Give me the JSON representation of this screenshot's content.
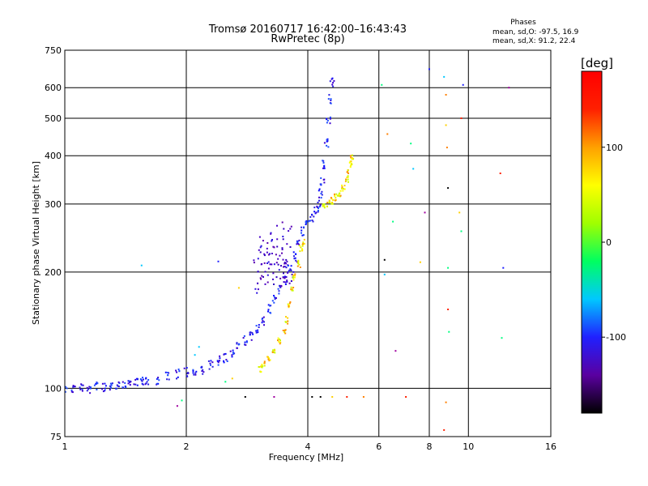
{
  "chart_data": {
    "type": "scatter",
    "title": "Tromsø 20160717 16:42:00–16:43:43",
    "subtitle": "RwPretec (8p)",
    "xlabel": "Frequency [MHz]",
    "ylabel": "Stationary phase Virtual Height [km]",
    "x_scale": "log2",
    "y_scale": "log",
    "xlim": [
      1,
      16
    ],
    "ylim": [
      75,
      750
    ],
    "x_ticks": [
      1,
      2,
      4,
      6,
      8,
      10,
      16
    ],
    "x_tick_labels": [
      "1",
      "2",
      "4",
      "6",
      "8",
      "10",
      "16"
    ],
    "y_ticks": [
      75,
      100,
      200,
      300,
      400,
      500,
      600,
      750
    ],
    "y_tick_labels": [
      "75",
      "100",
      "200",
      "300",
      "400",
      "500",
      "600",
      "750"
    ],
    "grid": true,
    "phase_stats": {
      "heading": "Phases",
      "o_line": "mean, sd,O: -97.5, 16.9",
      "x_line": "mean, sd,X:  91.2, 22.4"
    },
    "colorbar": {
      "label": "[deg]",
      "range": [
        -180,
        180
      ],
      "ticks": [
        100,
        0,
        -100
      ],
      "tick_labels": [
        "100",
        "0",
        "-100"
      ],
      "colors": [
        "#000000",
        "#5a00a0",
        "#2020ff",
        "#00c8ff",
        "#00ff60",
        "#a0ff00",
        "#ffff00",
        "#ffa000",
        "#ff2000",
        "#ff0000"
      ]
    },
    "series": [
      {
        "points": [
          [
            1.0,
            99
          ],
          [
            1.05,
            99
          ],
          [
            1.1,
            100
          ],
          [
            1.15,
            100
          ],
          [
            1.2,
            101
          ],
          [
            1.25,
            101
          ],
          [
            1.3,
            102
          ],
          [
            1.35,
            102
          ],
          [
            1.4,
            102
          ],
          [
            1.45,
            103
          ],
          [
            1.5,
            103
          ],
          [
            1.55,
            104
          ],
          [
            1.6,
            104
          ],
          [
            1.7,
            105
          ],
          [
            1.8,
            107
          ],
          [
            1.9,
            109
          ],
          [
            2.0,
            110
          ],
          [
            2.1,
            111
          ],
          [
            2.2,
            112
          ],
          [
            2.3,
            115
          ],
          [
            2.4,
            118
          ],
          [
            2.5,
            120
          ],
          [
            2.6,
            124
          ],
          [
            2.7,
            128
          ],
          [
            2.8,
            133
          ],
          [
            2.9,
            137
          ],
          [
            3.0,
            142
          ],
          [
            3.1,
            150
          ],
          [
            3.2,
            160
          ],
          [
            3.3,
            170
          ],
          [
            3.4,
            180
          ],
          [
            3.5,
            190
          ],
          [
            3.6,
            205
          ],
          [
            3.7,
            220
          ],
          [
            3.8,
            240
          ],
          [
            3.9,
            255
          ],
          [
            4.0,
            268
          ],
          [
            4.1,
            278
          ],
          [
            4.2,
            290
          ],
          [
            4.25,
            300
          ],
          [
            4.3,
            320
          ],
          [
            4.35,
            345
          ],
          [
            4.4,
            380
          ],
          [
            4.45,
            430
          ],
          [
            4.5,
            490
          ],
          [
            4.55,
            560
          ],
          [
            4.6,
            620
          ]
        ],
        "spread": 0.04,
        "colors": [
          "#2a1ee0",
          "#3a00d0",
          "#1f4dff",
          "#0a0aff"
        ]
      },
      {
        "points": [
          [
            3.0,
            190
          ],
          [
            3.05,
            200
          ],
          [
            3.1,
            215
          ],
          [
            3.15,
            230
          ],
          [
            3.2,
            195
          ],
          [
            3.25,
            240
          ],
          [
            3.3,
            210
          ],
          [
            3.35,
            250
          ],
          [
            3.4,
            200
          ],
          [
            3.45,
            225
          ],
          [
            3.5,
            195
          ],
          [
            3.55,
            245
          ],
          [
            3.6,
            210
          ],
          [
            3.65,
            200
          ]
        ],
        "spread": 0.12,
        "colors": [
          "#3000c0",
          "#4800c8",
          "#5a00b0",
          "#2a10e0"
        ]
      },
      {
        "points": [
          [
            3.05,
            112
          ],
          [
            3.1,
            115
          ],
          [
            3.2,
            120
          ],
          [
            3.3,
            126
          ],
          [
            3.4,
            132
          ],
          [
            3.5,
            140
          ],
          [
            3.55,
            150
          ],
          [
            3.6,
            165
          ],
          [
            3.65,
            180
          ],
          [
            3.7,
            195
          ],
          [
            3.8,
            210
          ],
          [
            3.85,
            230
          ],
          [
            3.9,
            240
          ],
          [
            4.4,
            295
          ],
          [
            4.5,
            300
          ],
          [
            4.6,
            305
          ],
          [
            4.7,
            312
          ],
          [
            4.8,
            320
          ],
          [
            4.9,
            330
          ],
          [
            5.0,
            345
          ],
          [
            5.05,
            360
          ],
          [
            5.1,
            380
          ],
          [
            5.15,
            400
          ]
        ],
        "spread": 0.03,
        "colors": [
          "#ffff00",
          "#e0f000",
          "#ffd000",
          "#ff9000",
          "#c8ff00"
        ]
      },
      {
        "points": [
          [
            1.55,
            208
          ],
          [
            1.9,
            90
          ],
          [
            1.95,
            93
          ],
          [
            2.1,
            122
          ],
          [
            2.15,
            128
          ],
          [
            2.4,
            213
          ],
          [
            2.5,
            104
          ],
          [
            2.6,
            106
          ],
          [
            2.7,
            182
          ],
          [
            2.8,
            95
          ],
          [
            3.3,
            95
          ],
          [
            4.1,
            95
          ],
          [
            4.3,
            95
          ],
          [
            4.6,
            95
          ],
          [
            5.0,
            95
          ],
          [
            5.5,
            95
          ],
          [
            6.1,
            610
          ],
          [
            6.2,
            215
          ],
          [
            6.2,
            197
          ],
          [
            6.3,
            455
          ],
          [
            6.5,
            270
          ],
          [
            6.6,
            125
          ],
          [
            7.0,
            95
          ],
          [
            7.2,
            430
          ],
          [
            7.3,
            370
          ],
          [
            7.6,
            212
          ],
          [
            7.8,
            285
          ],
          [
            8.0,
            670
          ],
          [
            8.7,
            640
          ],
          [
            8.8,
            575
          ],
          [
            8.8,
            480
          ],
          [
            8.85,
            420
          ],
          [
            8.9,
            330
          ],
          [
            8.9,
            205
          ],
          [
            8.9,
            160
          ],
          [
            8.95,
            140
          ],
          [
            8.8,
            92
          ],
          [
            8.7,
            78
          ],
          [
            9.5,
            285
          ],
          [
            9.6,
            500
          ],
          [
            9.7,
            610
          ],
          [
            9.6,
            255
          ],
          [
            12.0,
            360
          ],
          [
            12.2,
            205
          ],
          [
            12.1,
            135
          ],
          [
            12.6,
            600
          ]
        ],
        "spread": 0.0,
        "colors": [
          "#ff2000",
          "#00c8ff",
          "#ffd000",
          "#2020ff",
          "#00ff80",
          "#a000a0",
          "#ff8000",
          "#000000"
        ]
      }
    ]
  }
}
